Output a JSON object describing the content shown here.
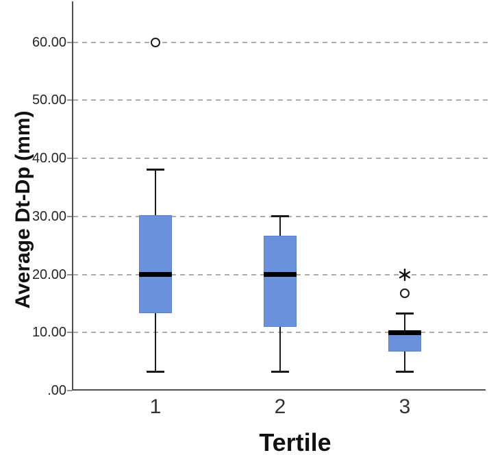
{
  "chart_data": {
    "type": "boxplot",
    "title": "",
    "xlabel": "Tertile",
    "ylabel": "Average Dt-Dp (mm)",
    "ylim": [
      0,
      65
    ],
    "yticks": [
      0,
      10,
      20,
      30,
      40,
      50,
      60
    ],
    "ytick_labels": [
      ".00",
      "10.00",
      "20.00",
      "30.00",
      "40.00",
      "50.00",
      "60.00"
    ],
    "grid": "horizontal-dashed",
    "legend": "none",
    "categories": [
      "1",
      "2",
      "3"
    ],
    "series": [
      {
        "category": "1",
        "min": 3.3,
        "q1": 13.3,
        "median": 20.0,
        "q3": 30.2,
        "max": 38.0,
        "outliers": [
          {
            "type": "circle",
            "value": 60.0
          }
        ]
      },
      {
        "category": "2",
        "min": 3.3,
        "q1": 11.0,
        "median": 20.0,
        "q3": 26.7,
        "max": 30.0,
        "outliers": []
      },
      {
        "category": "3",
        "min": 3.3,
        "q1": 6.7,
        "median": 10.0,
        "q3": 10.3,
        "max": 13.3,
        "outliers": [
          {
            "type": "circle",
            "value": 16.7
          },
          {
            "type": "asterisk",
            "value": 20.0
          }
        ]
      }
    ],
    "colors": {
      "box_fill": "#6b91dc",
      "box_border": "#5a80c6",
      "median": "#000000",
      "whisker": "#1a1a1a",
      "outlier": "#1a1a1a",
      "gridline": "#ababab",
      "axis": "#4d4d4d",
      "tick_label": "#262626"
    }
  }
}
